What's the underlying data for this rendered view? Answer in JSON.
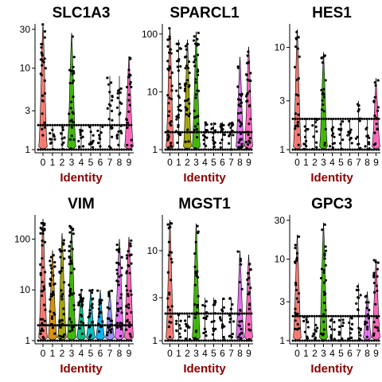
{
  "chart_data": [
    {
      "type": "violin",
      "title": "SLC1A3",
      "xlabel": "Identity",
      "scale": "log",
      "categories": [
        "0",
        "1",
        "2",
        "3",
        "4",
        "5",
        "6",
        "7",
        "8",
        "9"
      ],
      "yticks": [
        1,
        3,
        10,
        30
      ],
      "ylim": [
        1,
        35
      ],
      "median": [
        1.1,
        1,
        1,
        1.1,
        1,
        1,
        1,
        1,
        1,
        1.2
      ],
      "max": [
        38,
        2,
        2,
        27,
        2,
        2,
        2,
        8,
        8,
        14
      ],
      "violin": [
        true,
        false,
        false,
        true,
        false,
        false,
        false,
        false,
        false,
        true
      ],
      "colors": [
        "#f8766d",
        "#d89000",
        "#a3a500",
        "#39b600",
        "#00bf7d",
        "#00bfc4",
        "#00b0f6",
        "#9590ff",
        "#e76bf3",
        "#ff62bc"
      ]
    },
    {
      "type": "violin",
      "title": "SPARCL1",
      "xlabel": "Identity",
      "scale": "log",
      "categories": [
        "0",
        "1",
        "2",
        "3",
        "4",
        "5",
        "6",
        "7",
        "8",
        "9"
      ],
      "yticks": [
        1,
        10,
        100
      ],
      "ylim": [
        1,
        150
      ],
      "median": [
        1.2,
        1.1,
        1.3,
        1.3,
        1,
        1,
        1,
        1,
        1.5,
        2
      ],
      "max": [
        130,
        80,
        80,
        110,
        3,
        3,
        3,
        3,
        40,
        60
      ],
      "violin": [
        true,
        false,
        true,
        true,
        false,
        false,
        false,
        false,
        true,
        true
      ],
      "colors": [
        "#f8766d",
        "#d89000",
        "#a3a500",
        "#39b600",
        "#00bf7d",
        "#00bfc4",
        "#00b0f6",
        "#9590ff",
        "#e76bf3",
        "#ff62bc"
      ]
    },
    {
      "type": "violin",
      "title": "HES1",
      "xlabel": "Identity",
      "scale": "log",
      "categories": [
        "0",
        "1",
        "2",
        "3",
        "4",
        "5",
        "6",
        "7",
        "8",
        "9"
      ],
      "yticks": [
        1,
        3,
        10
      ],
      "ylim": [
        1,
        17
      ],
      "median": [
        1.1,
        1,
        1,
        1.1,
        1,
        1,
        1,
        1,
        1,
        1.1
      ],
      "max": [
        15,
        2,
        2,
        9,
        2,
        2,
        2,
        3,
        2,
        5
      ],
      "violin": [
        true,
        false,
        false,
        true,
        false,
        false,
        false,
        false,
        false,
        true
      ],
      "colors": [
        "#f8766d",
        "#d89000",
        "#a3a500",
        "#39b600",
        "#00bf7d",
        "#00bfc4",
        "#00b0f6",
        "#9590ff",
        "#e76bf3",
        "#ff62bc"
      ]
    },
    {
      "type": "violin",
      "title": "VIM",
      "xlabel": "Identity",
      "scale": "log",
      "categories": [
        "0",
        "1",
        "2",
        "3",
        "4",
        "5",
        "6",
        "7",
        "8",
        "9"
      ],
      "yticks": [
        1,
        10,
        100
      ],
      "ylim": [
        1,
        300
      ],
      "median": [
        1.5,
        1.2,
        1.2,
        1.5,
        1.2,
        1.2,
        1.2,
        1.2,
        3,
        5
      ],
      "max": [
        250,
        60,
        130,
        180,
        10,
        10,
        10,
        10,
        100,
        110
      ],
      "violin": [
        true,
        true,
        true,
        true,
        true,
        true,
        true,
        true,
        true,
        true
      ],
      "colors": [
        "#f8766d",
        "#d89000",
        "#a3a500",
        "#39b600",
        "#00bf7d",
        "#00bfc4",
        "#00b0f6",
        "#9590ff",
        "#e76bf3",
        "#ff62bc"
      ]
    },
    {
      "type": "violin",
      "title": "MGST1",
      "xlabel": "Identity",
      "scale": "log",
      "categories": [
        "0",
        "1",
        "2",
        "3",
        "4",
        "5",
        "6",
        "7",
        "8",
        "9"
      ],
      "yticks": [
        1,
        3,
        10
      ],
      "ylim": [
        1,
        25
      ],
      "median": [
        1.2,
        1,
        1,
        1.3,
        1,
        1,
        1,
        1,
        1.2,
        1.3
      ],
      "max": [
        22,
        2,
        2,
        20,
        3,
        3,
        3,
        3,
        10,
        9
      ],
      "violin": [
        true,
        false,
        false,
        true,
        false,
        false,
        false,
        false,
        true,
        true
      ],
      "colors": [
        "#f8766d",
        "#d89000",
        "#a3a500",
        "#39b600",
        "#00bf7d",
        "#00bfc4",
        "#00b0f6",
        "#9590ff",
        "#e76bf3",
        "#ff62bc"
      ]
    },
    {
      "type": "violin",
      "title": "GPC3",
      "xlabel": "Identity",
      "scale": "log",
      "categories": [
        "0",
        "1",
        "2",
        "3",
        "4",
        "5",
        "6",
        "7",
        "8",
        "9"
      ],
      "yticks": [
        1,
        3,
        10,
        30
      ],
      "ylim": [
        1,
        35
      ],
      "median": [
        1.2,
        1,
        1,
        1.3,
        1,
        1,
        1,
        1,
        1.1,
        1.4
      ],
      "max": [
        20,
        2,
        2,
        28,
        2,
        2,
        2,
        5,
        4,
        10
      ],
      "violin": [
        true,
        false,
        false,
        true,
        false,
        false,
        false,
        false,
        true,
        true
      ],
      "colors": [
        "#f8766d",
        "#d89000",
        "#a3a500",
        "#39b600",
        "#00bf7d",
        "#00bfc4",
        "#00b0f6",
        "#9590ff",
        "#e76bf3",
        "#ff62bc"
      ]
    }
  ]
}
